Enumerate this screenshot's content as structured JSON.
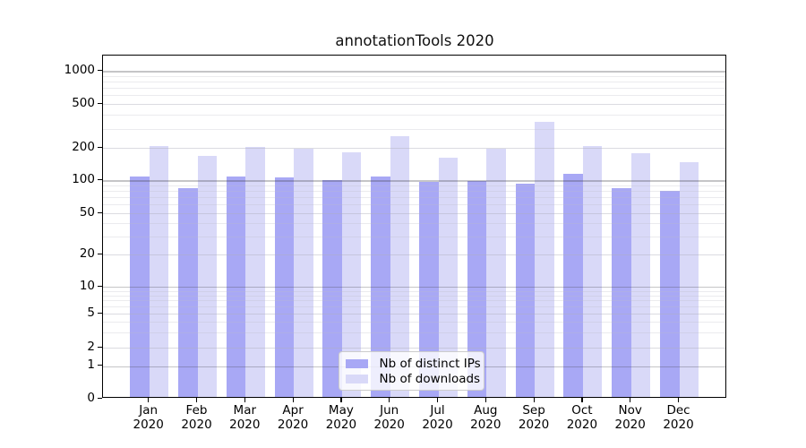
{
  "chart_data": {
    "type": "bar",
    "title": "annotationTools 2020",
    "xlabel": "",
    "ylabel": "",
    "x_tick_year": "2020",
    "categories": [
      "Jan",
      "Feb",
      "Mar",
      "Apr",
      "May",
      "Jun",
      "Jul",
      "Aug",
      "Sep",
      "Oct",
      "Nov",
      "Dec"
    ],
    "series": [
      {
        "name": "Nb of distinct IPs",
        "color": "#a8a8f5",
        "values": [
          110,
          85,
          108,
          106,
          100,
          109,
          97,
          99,
          94,
          116,
          85,
          81
        ]
      },
      {
        "name": "Nb of downloads",
        "color": "#d9d9f8",
        "values": [
          209,
          170,
          204,
          199,
          185,
          256,
          163,
          198,
          348,
          209,
          179,
          148
        ]
      }
    ],
    "yscale": "symlog",
    "yticks": [
      0,
      1,
      2,
      5,
      10,
      20,
      50,
      100,
      200,
      500,
      1000
    ],
    "ylim": [
      0,
      1500
    ],
    "grid": true,
    "grid_over_bars": true,
    "legend_position": "lower center",
    "colors": {
      "background": "#ffffff",
      "axis": "#000000",
      "major_grid": "#c6c6c8",
      "minor_grid": "#ebebef"
    }
  }
}
